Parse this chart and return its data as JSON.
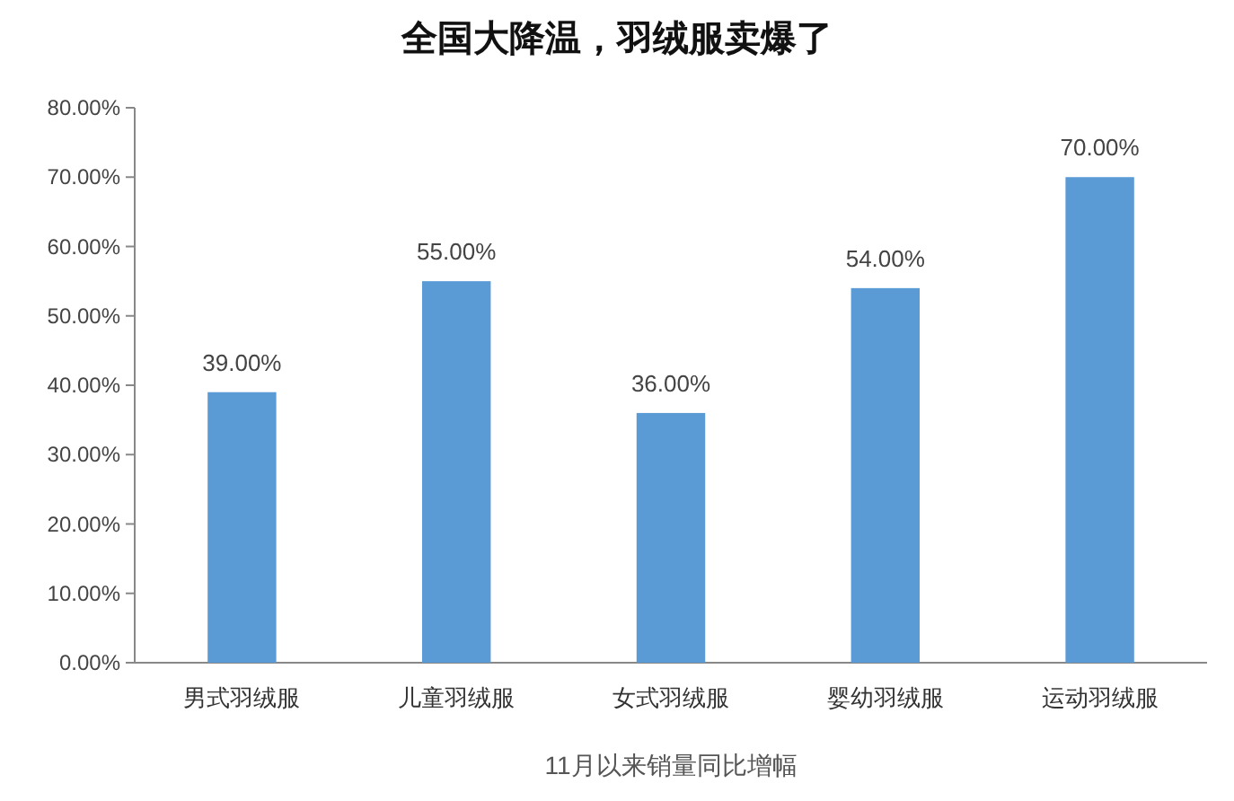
{
  "chart_data": {
    "type": "bar",
    "title": "全国大降温，羽绒服卖爆了",
    "xlabel": "11月以来销量同比增幅",
    "categories": [
      "男式羽绒服",
      "儿童羽绒服",
      "女式羽绒服",
      "婴幼羽绒服",
      "运动羽绒服"
    ],
    "values": [
      39,
      55,
      36,
      54,
      70
    ],
    "value_labels": [
      "39.00%",
      "55.00%",
      "36.00%",
      "54.00%",
      "70.00%"
    ],
    "color": "#5b9bd5",
    "ylim": [
      0,
      80
    ],
    "yticks": [
      {
        "value": 0,
        "label": "0.00%"
      },
      {
        "value": 10,
        "label": "10.00%"
      },
      {
        "value": 20,
        "label": "20.00%"
      },
      {
        "value": 30,
        "label": "30.00%"
      },
      {
        "value": 40,
        "label": "40.00%"
      },
      {
        "value": 50,
        "label": "50.00%"
      },
      {
        "value": 60,
        "label": "60.00%"
      },
      {
        "value": 70,
        "label": "70.00%"
      },
      {
        "value": 80,
        "label": "80.00%"
      }
    ]
  }
}
